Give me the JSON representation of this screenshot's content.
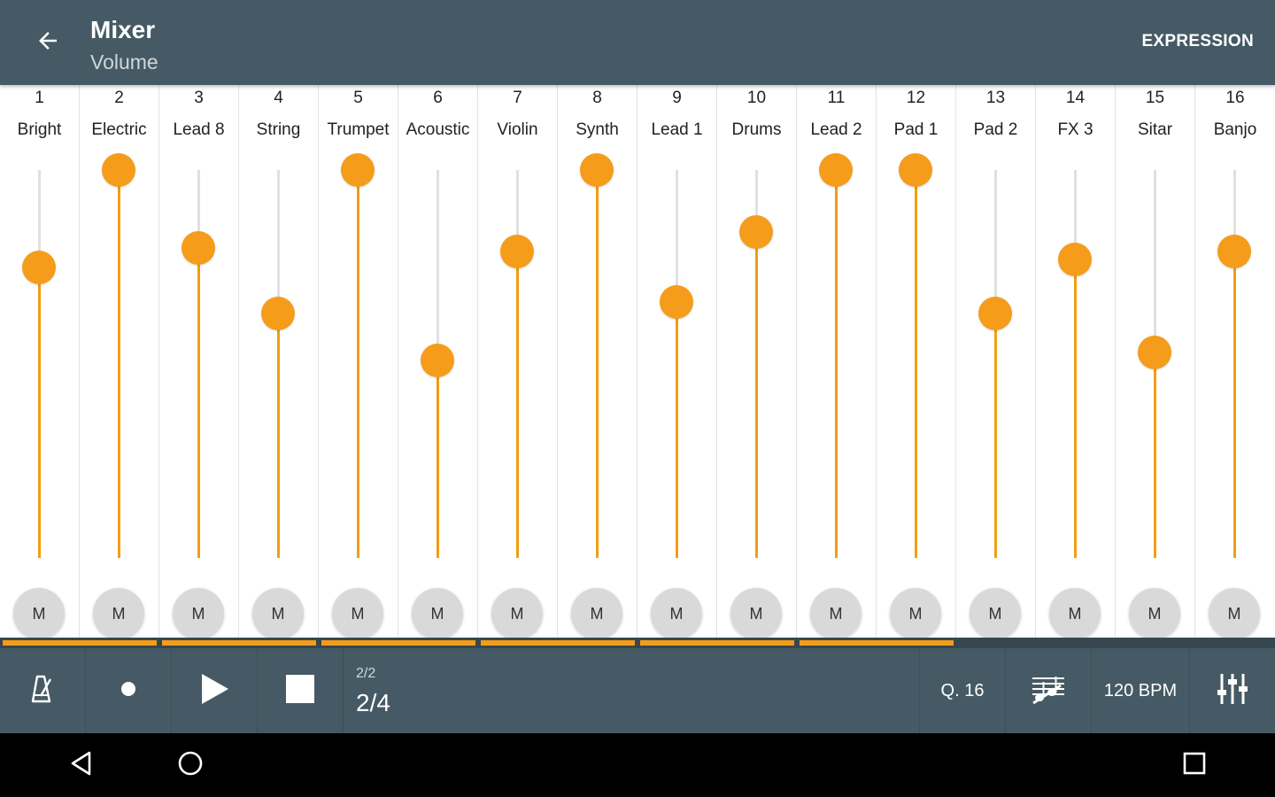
{
  "appbar": {
    "title": "Mixer",
    "subtitle": "Volume",
    "back_icon": "arrow-back-icon",
    "action_label": "EXPRESSION"
  },
  "colors": {
    "appbar": "#455a64",
    "accent": "#f59c1b",
    "track": "#e0e0e0",
    "mute_bg": "#d9d9d9",
    "navbar": "#000000"
  },
  "mute_label": "M",
  "channels": [
    {
      "number": "1",
      "name": "Bright",
      "level": 0.75
    },
    {
      "number": "2",
      "name": "Electric",
      "level": 1.0
    },
    {
      "number": "3",
      "name": "Lead 8",
      "level": 0.8
    },
    {
      "number": "4",
      "name": "String",
      "level": 0.63
    },
    {
      "number": "5",
      "name": "Trumpet",
      "level": 1.0
    },
    {
      "number": "6",
      "name": "Acoustic",
      "level": 0.51
    },
    {
      "number": "7",
      "name": "Violin",
      "level": 0.79
    },
    {
      "number": "8",
      "name": "Synth",
      "level": 1.0
    },
    {
      "number": "9",
      "name": "Lead 1",
      "level": 0.66
    },
    {
      "number": "10",
      "name": "Drums",
      "level": 0.84
    },
    {
      "number": "11",
      "name": "Lead 2",
      "level": 1.0
    },
    {
      "number": "12",
      "name": "Pad 1",
      "level": 1.0
    },
    {
      "number": "13",
      "name": "Pad 2",
      "level": 0.63
    },
    {
      "number": "14",
      "name": "FX 3",
      "level": 0.77
    },
    {
      "number": "15",
      "name": "Sitar",
      "level": 0.53
    },
    {
      "number": "16",
      "name": "Banjo",
      "level": 0.79
    }
  ],
  "progress": {
    "segments": 8,
    "filled": 6
  },
  "transport": {
    "metronome_icon": "metronome-icon",
    "record_icon": "record-icon",
    "play_icon": "play-icon",
    "stop_icon": "stop-icon",
    "time_signature": "2/2",
    "position": "2/4",
    "quantize": "Q. 16",
    "notes_icon": "notes-edit-icon",
    "tempo": "120 BPM",
    "mixer_icon": "mixer-sliders-icon"
  },
  "navbar": {
    "back_icon": "nav-back-icon",
    "home_icon": "nav-home-icon",
    "recents_icon": "nav-recents-icon"
  }
}
